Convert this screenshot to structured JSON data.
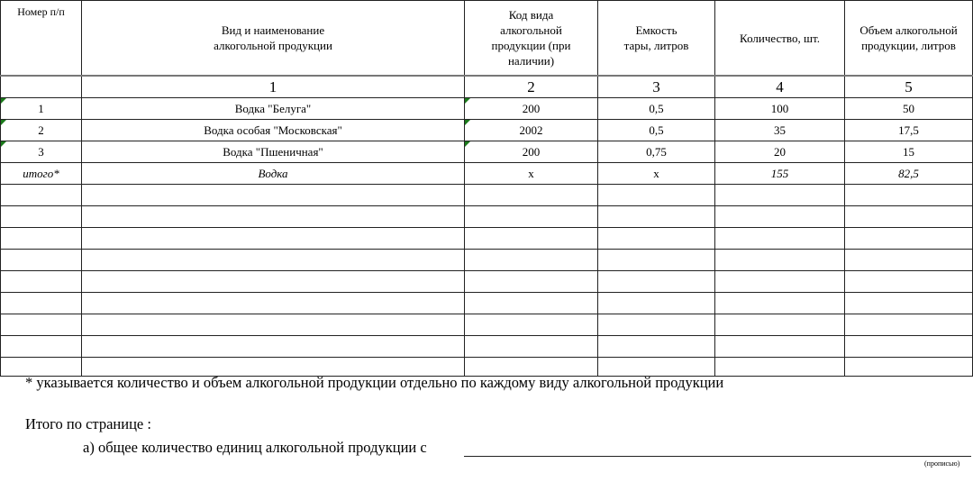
{
  "table": {
    "headers": [
      "Номер п/п",
      "Вид и наименование алкогольной продукции",
      "Код вида алкогольной продукции (при наличии)",
      "Емкость тары, литров",
      "Количество, шт.",
      "Объем алкогольной продукции, литров"
    ],
    "column_numbers": [
      "",
      "1",
      "2",
      "3",
      "4",
      "5"
    ],
    "rows": [
      [
        "1",
        "Водка \"Белуга\"",
        "200",
        "0,5",
        "100",
        "50"
      ],
      [
        "2",
        "Водка особая \"Московская\"",
        "2002",
        "0,5",
        "35",
        "17,5"
      ],
      [
        "3",
        "Водка \"Пшеничная\"",
        "200",
        "0,75",
        "20",
        "15"
      ]
    ],
    "total": [
      "итого*",
      "Водка",
      "х",
      "х",
      "155",
      "82,5"
    ]
  },
  "footer": {
    "note": "* указывается количество и объем алкогольной продукции отдельно по каждому виду алкогольной продукции",
    "page_total": "Итого по странице :",
    "item_a": "а) общее количество единиц алкогольной продукции с",
    "hint": "(прописью)"
  }
}
